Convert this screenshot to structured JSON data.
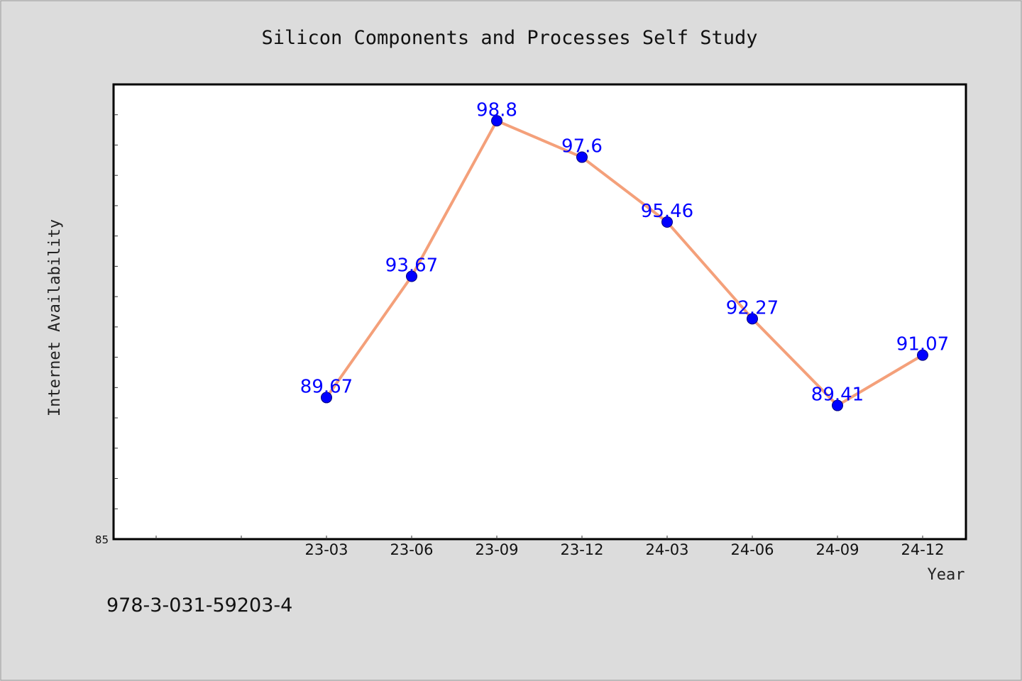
{
  "chart_data": {
    "type": "line",
    "title": "Silicon Components and Processes Self Study",
    "xlabel": "Year",
    "ylabel": "Internet Availability",
    "categories": [
      "23-03",
      "23-06",
      "23-09",
      "23-12",
      "24-03",
      "24-06",
      "24-09",
      "24-12"
    ],
    "series": [
      {
        "values": [
          89.67,
          93.67,
          98.8,
          97.6,
          95.46,
          92.27,
          89.41,
          91.07
        ],
        "labels": [
          "89.67",
          "93.67",
          "98.8",
          "97.6",
          "95.46",
          "92.27",
          "89.41",
          "91.07"
        ]
      }
    ],
    "ylim": [
      85,
      100
    ],
    "ytick_labels": [
      "85"
    ],
    "grid": false,
    "line_color": "#f4a07a",
    "marker_color": "#0000ff",
    "data_label_color": "#0000ff"
  },
  "footer": {
    "isbn": "978-3-031-59203-4"
  }
}
